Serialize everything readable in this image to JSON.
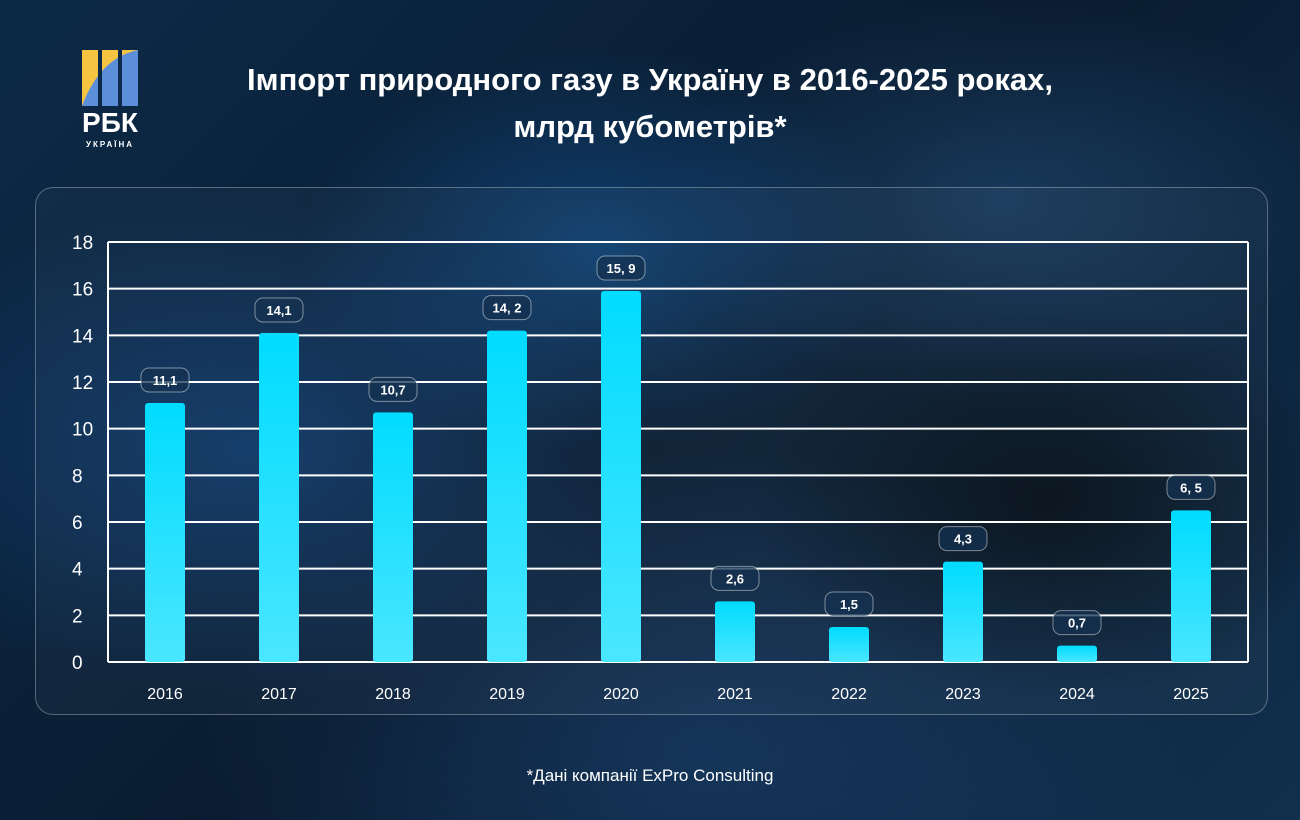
{
  "logo": {
    "text": "РБК",
    "subtext": "УКРАЇНА"
  },
  "chart_data": {
    "type": "bar",
    "title": [
      "Імпорт природного газу в Україну в 2016-2025 роках,",
      "млрд кубометрів*"
    ],
    "categories": [
      "2016",
      "2017",
      "2018",
      "2019",
      "2020",
      "2021",
      "2022",
      "2023",
      "2024",
      "2025"
    ],
    "values": [
      11.1,
      14.1,
      10.7,
      14.2,
      15.9,
      2.6,
      1.5,
      4.3,
      0.7,
      6.5
    ],
    "data_labels": [
      "11,1",
      "14,1",
      "10,7",
      "14, 2",
      "15, 9",
      "2,6",
      "1,5",
      "4,3",
      "0,7",
      "6, 5"
    ],
    "ylim": [
      0,
      18
    ],
    "yticks": [
      0,
      2,
      4,
      6,
      8,
      10,
      12,
      14,
      16,
      18
    ],
    "grid": true,
    "bar_color": "#00dcff",
    "bar_color_bottom": "#4ae6ff"
  },
  "footnote": "*Дані компанії ExPro Consulting"
}
